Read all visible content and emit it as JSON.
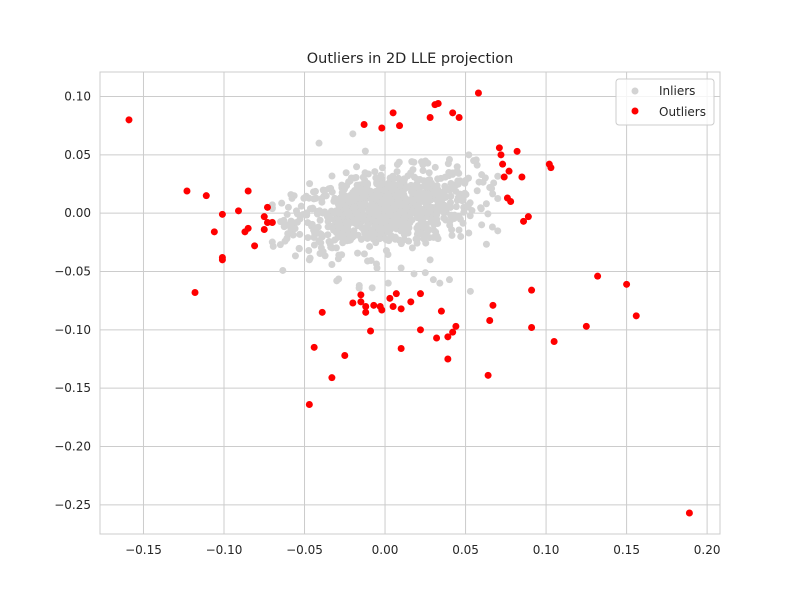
{
  "chart_data": {
    "type": "scatter",
    "title": "Outliers in 2D LLE projection",
    "xlabel": "",
    "ylabel": "",
    "xlim": [
      -0.177,
      0.208
    ],
    "ylim": [
      -0.275,
      0.121
    ],
    "xticks": [
      -0.15,
      -0.1,
      -0.05,
      0.0,
      0.05,
      0.1,
      0.15,
      0.2
    ],
    "xtick_labels": [
      "−0.15",
      "−0.10",
      "−0.05",
      "0.00",
      "0.05",
      "0.10",
      "0.15",
      "0.20"
    ],
    "yticks": [
      0.1,
      0.05,
      0.0,
      -0.05,
      -0.1,
      -0.15,
      -0.2,
      -0.25
    ],
    "ytick_labels": [
      "0.10",
      "0.05",
      "0.00",
      "−0.05",
      "−0.10",
      "−0.15",
      "−0.20",
      "−0.25"
    ],
    "grid": true,
    "legend_placement": "top-right",
    "colors": {
      "inliers": "#d3d3d3",
      "outliers": "#ff0000",
      "grid": "#cccccc",
      "spine": "#cccccc"
    },
    "series": [
      {
        "name": "Inliers",
        "color": "#d3d3d3",
        "cluster": {
          "center": [
            0.0,
            0.003
          ],
          "sd": [
            0.028,
            0.016
          ],
          "count": 900,
          "clip_x": [
            -0.07,
            0.07
          ],
          "clip_y": [
            -0.07,
            0.07
          ]
        },
        "points": [
          [
            -0.02,
            0.068
          ],
          [
            -0.041,
            0.06
          ],
          [
            -0.06,
            0.005
          ],
          [
            -0.055,
            0.002
          ],
          [
            -0.06,
            -0.01
          ],
          [
            -0.065,
            -0.027
          ],
          [
            -0.061,
            -0.022
          ],
          [
            -0.047,
            -0.04
          ],
          [
            -0.033,
            -0.044
          ],
          [
            -0.03,
            -0.058
          ],
          [
            -0.016,
            -0.062
          ],
          [
            -0.008,
            -0.064
          ],
          [
            0.002,
            -0.06
          ],
          [
            0.01,
            -0.047
          ],
          [
            0.018,
            -0.052
          ],
          [
            0.025,
            -0.051
          ],
          [
            0.03,
            -0.057
          ],
          [
            0.034,
            -0.06
          ],
          [
            0.04,
            -0.057
          ],
          [
            0.053,
            -0.067
          ],
          [
            0.046,
            -0.003
          ],
          [
            0.047,
            -0.02
          ],
          [
            0.052,
            -0.017
          ],
          [
            0.06,
            -0.01
          ],
          [
            0.065,
            0.022
          ],
          [
            0.055,
            0.045
          ],
          [
            0.052,
            0.05
          ],
          [
            0.06,
            0.033
          ],
          [
            0.05,
            0.028
          ],
          [
            0.04,
            0.046
          ],
          [
            -0.005,
            -0.047
          ],
          [
            0.028,
            -0.04
          ],
          [
            -0.052,
            0.006
          ]
        ]
      },
      {
        "name": "Outliers",
        "color": "#ff0000",
        "points": [
          [
            -0.159,
            0.08
          ],
          [
            -0.123,
            0.019
          ],
          [
            -0.111,
            0.015
          ],
          [
            -0.101,
            -0.001
          ],
          [
            -0.106,
            -0.016
          ],
          [
            -0.101,
            -0.038
          ],
          [
            -0.101,
            -0.04
          ],
          [
            -0.118,
            -0.068
          ],
          [
            -0.091,
            0.002
          ],
          [
            -0.085,
            0.019
          ],
          [
            -0.085,
            -0.013
          ],
          [
            -0.087,
            -0.016
          ],
          [
            -0.081,
            -0.028
          ],
          [
            -0.075,
            -0.003
          ],
          [
            -0.073,
            0.005
          ],
          [
            -0.073,
            -0.008
          ],
          [
            -0.07,
            -0.008
          ],
          [
            -0.075,
            -0.014
          ],
          [
            -0.047,
            -0.164
          ],
          [
            -0.044,
            -0.115
          ],
          [
            -0.039,
            -0.085
          ],
          [
            -0.033,
            -0.141
          ],
          [
            -0.025,
            -0.122
          ],
          [
            -0.02,
            -0.077
          ],
          [
            -0.015,
            -0.07
          ],
          [
            -0.015,
            -0.076
          ],
          [
            -0.012,
            -0.08
          ],
          [
            -0.012,
            -0.085
          ],
          [
            -0.009,
            -0.101
          ],
          [
            -0.007,
            -0.079
          ],
          [
            -0.003,
            -0.08
          ],
          [
            -0.002,
            -0.083
          ],
          [
            0.003,
            -0.073
          ],
          [
            0.005,
            -0.08
          ],
          [
            0.007,
            -0.069
          ],
          [
            0.01,
            -0.082
          ],
          [
            0.01,
            -0.116
          ],
          [
            0.016,
            -0.076
          ],
          [
            0.022,
            -0.069
          ],
          [
            0.022,
            -0.1
          ],
          [
            0.032,
            -0.107
          ],
          [
            0.035,
            -0.084
          ],
          [
            0.039,
            -0.106
          ],
          [
            0.039,
            -0.125
          ],
          [
            0.042,
            -0.102
          ],
          [
            0.044,
            -0.097
          ],
          [
            0.064,
            -0.139
          ],
          [
            0.065,
            -0.092
          ],
          [
            0.067,
            -0.079
          ],
          [
            0.091,
            -0.098
          ],
          [
            0.091,
            -0.066
          ],
          [
            0.105,
            -0.11
          ],
          [
            0.125,
            -0.097
          ],
          [
            0.132,
            -0.054
          ],
          [
            0.15,
            -0.061
          ],
          [
            0.156,
            -0.088
          ],
          [
            0.189,
            -0.257
          ],
          [
            -0.013,
            0.076
          ],
          [
            -0.002,
            0.073
          ],
          [
            0.005,
            0.086
          ],
          [
            0.009,
            0.075
          ],
          [
            0.028,
            0.082
          ],
          [
            0.031,
            0.093
          ],
          [
            0.033,
            0.094
          ],
          [
            0.042,
            0.086
          ],
          [
            0.046,
            0.082
          ],
          [
            0.058,
            0.103
          ],
          [
            0.071,
            0.056
          ],
          [
            0.072,
            0.05
          ],
          [
            0.073,
            0.042
          ],
          [
            0.074,
            0.031
          ],
          [
            0.076,
            0.013
          ],
          [
            0.077,
            0.036
          ],
          [
            0.078,
            0.01
          ],
          [
            0.082,
            0.053
          ],
          [
            0.085,
            0.031
          ],
          [
            0.086,
            -0.007
          ],
          [
            0.089,
            -0.003
          ],
          [
            0.102,
            0.042
          ],
          [
            0.103,
            0.039
          ]
        ]
      }
    ]
  }
}
